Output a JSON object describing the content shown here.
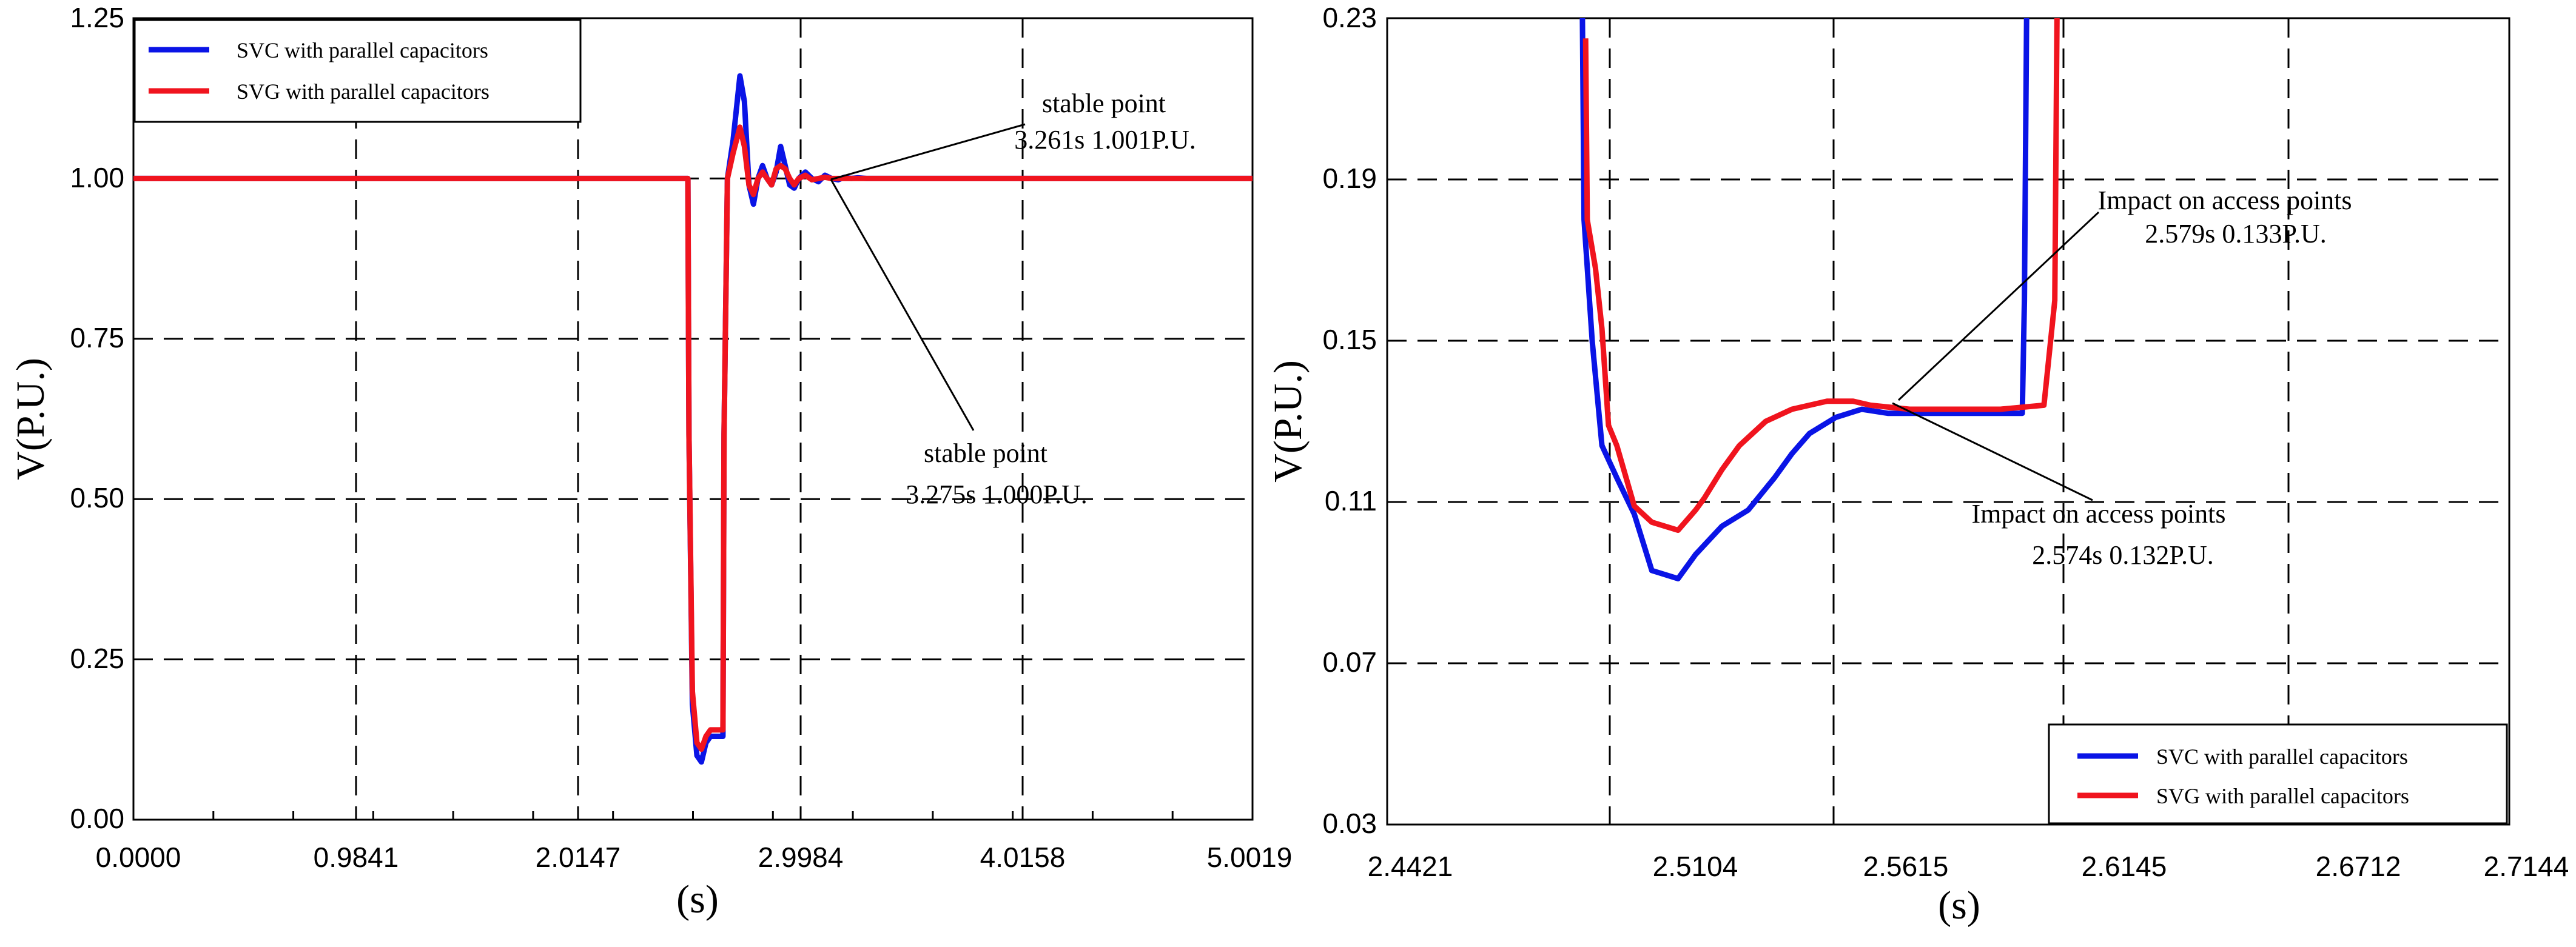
{
  "colors": {
    "svc": "#0a14e6",
    "svg": "#f0141e"
  },
  "chart_data": [
    {
      "type": "line",
      "title": "",
      "xlabel": "(s)",
      "ylabel": "V(P.U.)",
      "xlim": [
        0.0,
        5.0019
      ],
      "ylim": [
        0.0,
        1.25
      ],
      "xticks": [
        0.0,
        0.9841,
        2.0147,
        2.9984,
        4.0158,
        5.0019
      ],
      "xtick_labels": [
        "0.0000",
        "0.9841",
        "2.0147",
        "2.9984",
        "4.0158",
        "5.0019"
      ],
      "yticks": [
        0.0,
        0.25,
        0.5,
        0.75,
        1.0,
        1.25
      ],
      "ytick_labels": [
        "0.00",
        "0.25",
        "0.50",
        "0.75",
        "1.00",
        "1.25"
      ],
      "grid": true,
      "legend_position": "top-left",
      "series": [
        {
          "name": "SVC with parallel capacitors",
          "color_key": "svc",
          "x": [
            0.0,
            2.5,
            2.505,
            2.52,
            2.54,
            2.56,
            2.58,
            2.6,
            2.62,
            2.64,
            2.655,
            2.66,
            2.675,
            2.7,
            2.73,
            2.75,
            2.77,
            2.79,
            2.81,
            2.83,
            2.85,
            2.87,
            2.89,
            2.91,
            2.93,
            2.95,
            2.97,
            2.99,
            3.02,
            3.05,
            3.08,
            3.11,
            3.14,
            3.17,
            3.2,
            3.23,
            3.261,
            3.3,
            3.4,
            3.5,
            5.0019
          ],
          "y": [
            1.0,
            1.0,
            0.6,
            0.18,
            0.1,
            0.09,
            0.12,
            0.13,
            0.13,
            0.13,
            0.13,
            0.6,
            1.0,
            1.06,
            1.16,
            1.12,
            0.99,
            0.96,
            1.0,
            1.02,
            1.0,
            0.99,
            1.01,
            1.05,
            1.02,
            0.99,
            0.985,
            1.0,
            1.01,
            1.0,
            0.995,
            1.005,
            1.0,
            0.998,
            1.002,
            1.0,
            1.001,
            1.0,
            1.0,
            1.0,
            1.0
          ]
        },
        {
          "name": "SVG with parallel capacitors",
          "color_key": "svg",
          "x": [
            0.0,
            2.5,
            2.505,
            2.52,
            2.54,
            2.56,
            2.58,
            2.6,
            2.62,
            2.64,
            2.655,
            2.66,
            2.675,
            2.7,
            2.73,
            2.75,
            2.77,
            2.79,
            2.81,
            2.83,
            2.85,
            2.87,
            2.89,
            2.91,
            2.93,
            2.95,
            2.97,
            2.99,
            3.02,
            3.05,
            3.08,
            3.11,
            3.14,
            3.17,
            3.2,
            3.23,
            3.275,
            3.3,
            3.4,
            3.5,
            5.0019
          ],
          "y": [
            1.0,
            1.0,
            0.6,
            0.2,
            0.12,
            0.11,
            0.13,
            0.14,
            0.14,
            0.14,
            0.14,
            0.6,
            1.0,
            1.04,
            1.08,
            1.05,
            0.99,
            0.975,
            1.0,
            1.01,
            1.0,
            0.99,
            1.015,
            1.02,
            1.015,
            1.0,
            0.99,
            1.0,
            1.005,
            0.998,
            1.0,
            1.002,
            1.0,
            1.0,
            1.0,
            1.0,
            1.0,
            1.0,
            1.0,
            1.0,
            1.0
          ]
        }
      ],
      "annotations": [
        {
          "line1": "stable point",
          "line2": "3.261s   1.001P.U.",
          "x": 3.261,
          "y": 1.001
        },
        {
          "line1": "stable point",
          "line2": "3.275s  1.000P.U.",
          "x": 3.275,
          "y": 1.0
        }
      ]
    },
    {
      "type": "line",
      "title": "",
      "xlabel": "(s)",
      "ylabel": "V(P.U.)",
      "xlim": [
        2.4421,
        2.7144
      ],
      "ylim": [
        0.03,
        0.23
      ],
      "xticks": [
        2.4421,
        2.5104,
        2.5615,
        2.6145,
        2.6712,
        2.7144
      ],
      "xtick_labels": [
        "2.4421",
        "2.5104",
        "2.5615",
        "2.6145",
        "2.6712",
        "2.7144"
      ],
      "yticks": [
        0.03,
        0.07,
        0.11,
        0.15,
        0.19,
        0.23
      ],
      "ytick_labels": [
        "0.03",
        "0.07",
        "0.11",
        "0.15",
        "0.19",
        "0.23"
      ],
      "grid": true,
      "legend_position": "bottom-right",
      "series": [
        {
          "name": "SVC with parallel capacitors",
          "color_key": "svc",
          "x": [
            2.502,
            2.5025,
            2.505,
            2.508,
            2.512,
            2.516,
            2.52,
            2.526,
            2.53,
            2.536,
            2.542,
            2.548,
            2.552,
            2.556,
            2.562,
            2.568,
            2.574,
            2.585,
            2.596,
            2.605,
            2.6055,
            2.606
          ],
          "y": [
            0.23,
            0.18,
            0.15,
            0.124,
            0.116,
            0.107,
            0.093,
            0.091,
            0.097,
            0.104,
            0.108,
            0.116,
            0.122,
            0.127,
            0.131,
            0.133,
            0.132,
            0.132,
            0.132,
            0.132,
            0.16,
            0.23
          ],
          "marker_shape": "step"
        },
        {
          "name": "SVG with parallel capacitors",
          "color_key": "svg",
          "x": [
            2.503,
            2.5035,
            2.506,
            2.508,
            2.51,
            2.512,
            2.516,
            2.52,
            2.526,
            2.53,
            2.532,
            2.536,
            2.54,
            2.546,
            2.552,
            2.56,
            2.566,
            2.57,
            2.579,
            2.59,
            2.6,
            2.61,
            2.6125,
            2.613
          ],
          "y": [
            0.225,
            0.18,
            0.168,
            0.153,
            0.129,
            0.124,
            0.109,
            0.105,
            0.103,
            0.108,
            0.111,
            0.118,
            0.124,
            0.13,
            0.133,
            0.135,
            0.135,
            0.134,
            0.133,
            0.133,
            0.133,
            0.134,
            0.16,
            0.23
          ]
        }
      ],
      "annotations": [
        {
          "line1": "Impact on access points",
          "line2": "2.579s  0.133P.U.",
          "x": 2.579,
          "y": 0.133
        },
        {
          "line1": "Impact on access points",
          "line2": "2.574s  0.132P.U.",
          "x": 2.574,
          "y": 0.132
        }
      ]
    }
  ]
}
